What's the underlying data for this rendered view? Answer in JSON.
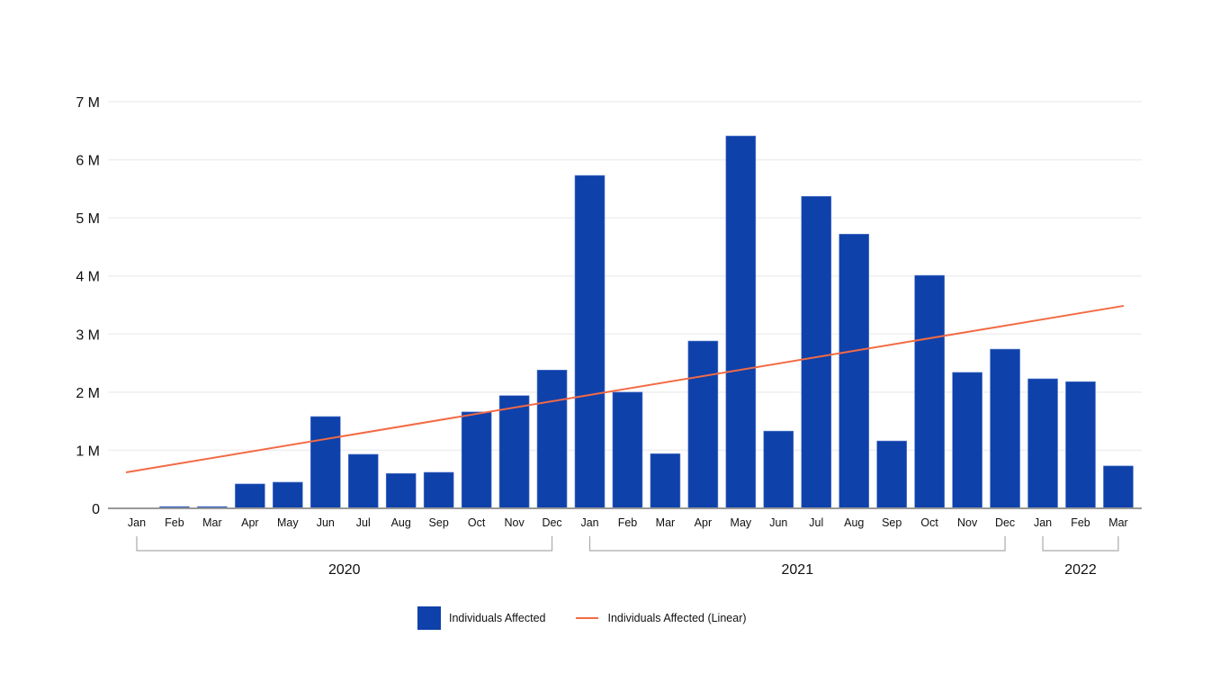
{
  "chart_data": {
    "type": "bar",
    "categories": [
      "Jan",
      "Feb",
      "Mar",
      "Apr",
      "May",
      "Jun",
      "Jul",
      "Aug",
      "Sep",
      "Oct",
      "Nov",
      "Dec",
      "Jan",
      "Feb",
      "Mar",
      "Apr",
      "May",
      "Jun",
      "Jul",
      "Aug",
      "Sep",
      "Oct",
      "Nov",
      "Dec",
      "Jan",
      "Feb",
      "Mar"
    ],
    "groups": [
      {
        "label": "2020",
        "from": 0,
        "to": 11
      },
      {
        "label": "2021",
        "from": 12,
        "to": 23
      },
      {
        "label": "2022",
        "from": 24,
        "to": 26
      }
    ],
    "series": [
      {
        "name": "Individuals Affected",
        "type": "bar",
        "color": "#0f41aa",
        "values": [
          0,
          0.03,
          0.03,
          0.42,
          0.45,
          1.58,
          0.93,
          0.6,
          0.62,
          1.66,
          1.94,
          2.38,
          5.73,
          2.0,
          0.94,
          2.88,
          6.41,
          1.33,
          5.37,
          4.72,
          1.16,
          4.01,
          2.34,
          2.74,
          2.23,
          2.18,
          0.73
        ]
      },
      {
        "name": "Individuals Affected (Linear)",
        "type": "line",
        "color": "#f26b45",
        "start": 0.65,
        "end": 3.47
      }
    ],
    "unit": "millions",
    "yticks": [
      {
        "v": 0,
        "label": "0"
      },
      {
        "v": 1,
        "label": "1 M"
      },
      {
        "v": 2,
        "label": "2 M"
      },
      {
        "v": 3,
        "label": "3 M"
      },
      {
        "v": 4,
        "label": "4 M"
      },
      {
        "v": 5,
        "label": "5 M"
      },
      {
        "v": 6,
        "label": "6 M"
      },
      {
        "v": 7,
        "label": "7 M"
      }
    ],
    "ylim": [
      0,
      7
    ],
    "grid": true,
    "legend": "bottom"
  }
}
